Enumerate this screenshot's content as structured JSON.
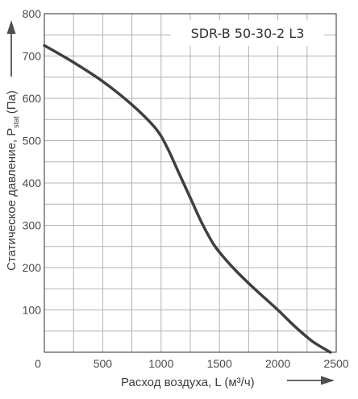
{
  "chart_data": {
    "type": "line",
    "title": "SDR-B 50-30-2 L3",
    "xlabel": "Расход воздуха, L (м³/ч)",
    "ylabel": "Статическое давление, P",
    "ylabel_subscript": "stat",
    "ylabel_suffix": "(Па)",
    "xlim": [
      0,
      2500
    ],
    "ylim": [
      0,
      800
    ],
    "x_ticks": [
      0,
      500,
      1000,
      1500,
      2000,
      2500
    ],
    "y_ticks": [
      100,
      200,
      300,
      400,
      500,
      600,
      700,
      800
    ],
    "grid": true,
    "series": [
      {
        "x": [
          0,
          250,
          500,
          750,
          950,
          1050,
          1150,
          1250,
          1350,
          1450,
          1550,
          1650,
          1800,
          2000,
          2150,
          2300,
          2450
        ],
        "y": [
          725,
          685,
          640,
          585,
          530,
          485,
          425,
          365,
          305,
          255,
          220,
          190,
          150,
          100,
          60,
          25,
          0
        ]
      }
    ]
  },
  "colors": {
    "grid": "#b3b3b3",
    "curve": "#3f3f3f",
    "axis": "#2d2d2d",
    "arrow": "#505050"
  }
}
